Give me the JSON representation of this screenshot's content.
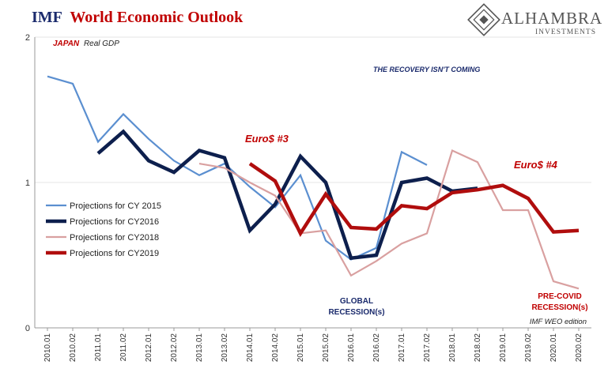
{
  "header": {
    "title_part1": "IMF",
    "title_part2": "World Economic Outlook"
  },
  "brand": {
    "name": "ALHAMBRA",
    "tagline": "INVESTMENTS",
    "icon": "alhambra-diamond-logo"
  },
  "colors": {
    "cy2015": "#5b8fd0",
    "cy2016": "#0d1f4d",
    "cy2018": "#d9a0a0",
    "cy2019": "#b00d0d",
    "title_navy": "#1a2a6c",
    "accent_red": "#c00000"
  },
  "annotations": {
    "japan": "JAPAN",
    "real_gdp": "Real GDP",
    "recovery": "THE RECOVERY ISN'T COMING",
    "euro3": "Euro$ #3",
    "euro4": "Euro$ #4",
    "global_line1": "GLOBAL",
    "global_line2": "RECESSION(s)",
    "precovid_line1": "PRE-COVID",
    "precovid_line2": "RECESSION(s)",
    "edition": "IMF WEO edition"
  },
  "chart_data": {
    "type": "line",
    "categories": [
      "2010.01",
      "2010.02",
      "2011.01",
      "2011.02",
      "2012.01",
      "2012.02",
      "2013.01",
      "2013.02",
      "2014.01",
      "2014.02",
      "2015.01",
      "2015.02",
      "2016.01",
      "2016.02",
      "2017.01",
      "2017.02",
      "2018.01",
      "2018.02",
      "2019.01",
      "2019.02",
      "2020.01",
      "2020.02"
    ],
    "ylim": [
      0,
      2
    ],
    "yticks": [
      "0",
      "1",
      "2"
    ],
    "grid": "horizontal",
    "legend_position": "left",
    "series": [
      {
        "name": "Projections for CY 2015",
        "color": "#5b8fd0",
        "width": 2.2,
        "values": [
          1.73,
          1.68,
          1.28,
          1.47,
          1.3,
          1.15,
          1.05,
          1.13,
          0.97,
          0.83,
          1.05,
          0.6,
          0.47,
          0.55,
          1.21,
          1.12,
          null,
          null,
          null,
          null,
          null,
          null
        ]
      },
      {
        "name": "Projections for CY2016",
        "color": "#0d1f4d",
        "width": 4.5,
        "values": [
          null,
          null,
          1.2,
          1.35,
          1.15,
          1.07,
          1.22,
          1.17,
          0.67,
          0.85,
          1.18,
          1.0,
          0.48,
          0.5,
          1.0,
          1.03,
          0.94,
          0.96,
          null,
          null,
          null,
          null
        ]
      },
      {
        "name": "Projections for CY2018",
        "color": "#d9a0a0",
        "width": 2.2,
        "values": [
          null,
          null,
          null,
          null,
          null,
          null,
          1.13,
          1.1,
          1.0,
          0.91,
          0.65,
          0.67,
          0.36,
          0.46,
          0.58,
          0.65,
          1.22,
          1.14,
          0.81,
          0.81,
          0.32,
          0.27
        ]
      },
      {
        "name": "Projections for CY2019",
        "color": "#b00d0d",
        "width": 4.5,
        "values": [
          null,
          null,
          null,
          null,
          null,
          null,
          null,
          null,
          1.13,
          1.01,
          0.65,
          0.92,
          0.69,
          0.68,
          0.84,
          0.82,
          0.93,
          0.95,
          0.98,
          0.89,
          0.66,
          0.67
        ]
      }
    ]
  }
}
